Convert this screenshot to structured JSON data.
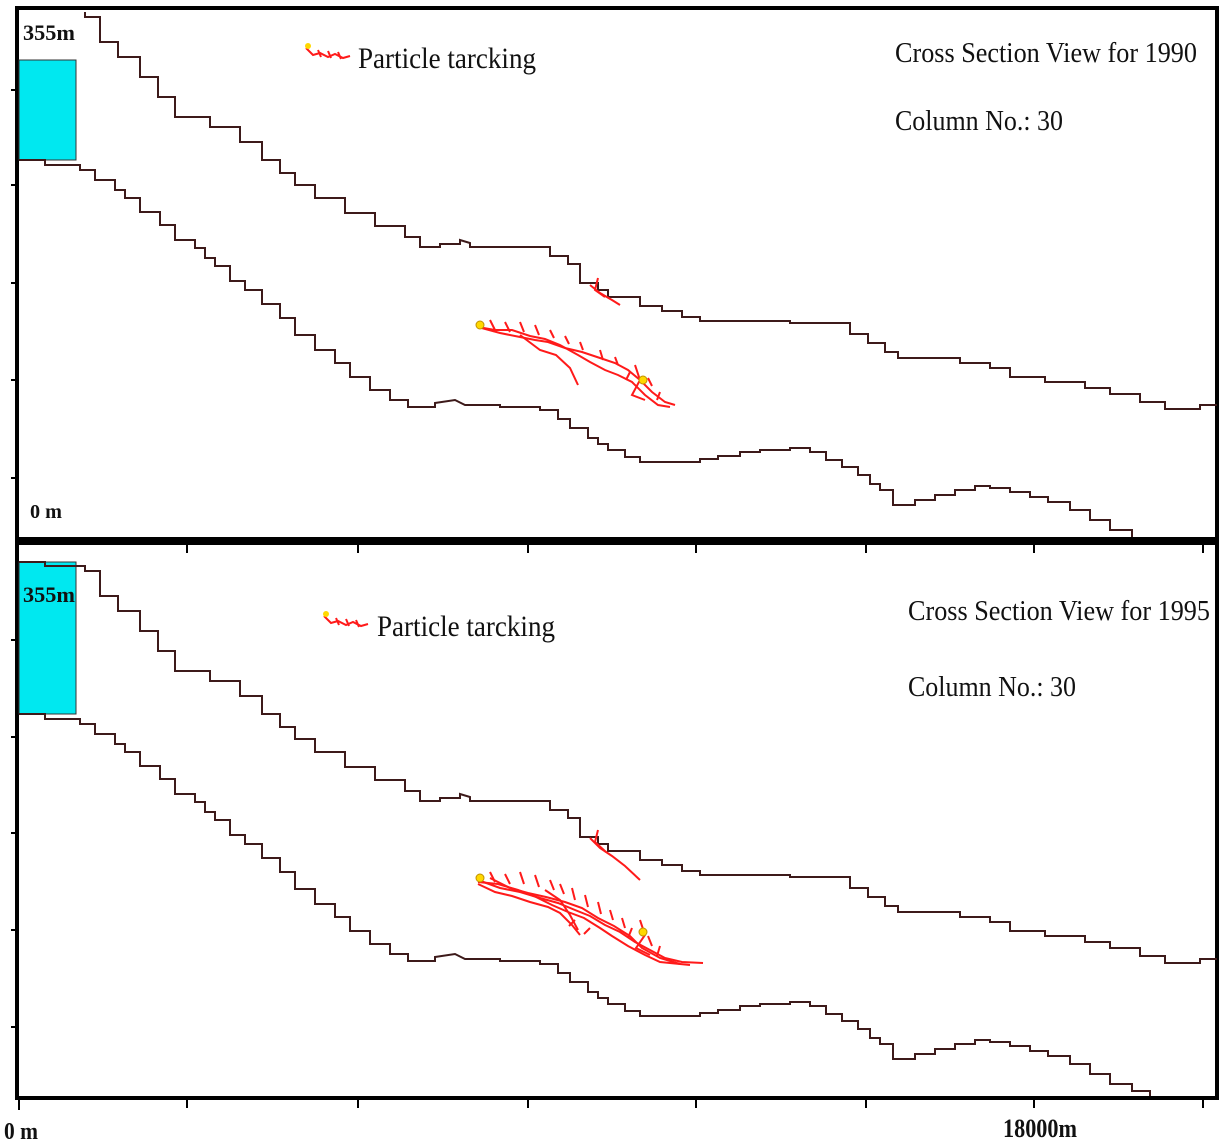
{
  "panels": [
    {
      "title": "Cross Section View for 1990",
      "column": "Column No.: 30",
      "top_label": "355m",
      "bottom_label": "0 m",
      "legend": "Particle tarcking"
    },
    {
      "title": "Cross Section View for 1995",
      "column": "Column No.: 30",
      "top_label": "355m",
      "legend": "Particle tarcking"
    }
  ],
  "x_axis": {
    "start_label": "0 m",
    "end_label": "18000m"
  },
  "colors": {
    "layer_line": "#3d1a1a",
    "particle_path": "#ff1a1a",
    "particle_marker": "#ffd800",
    "water_body": "#00e8f0",
    "frame": "#000000"
  }
}
